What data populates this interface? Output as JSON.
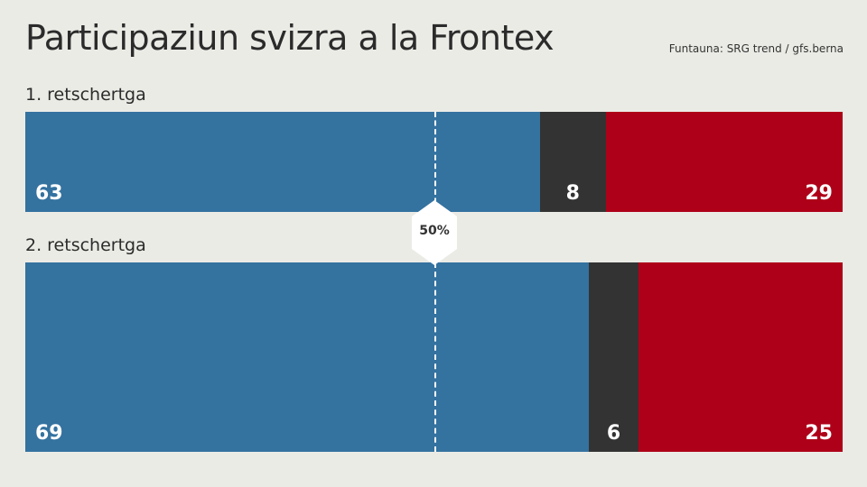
{
  "title": "Participaziun svizra a la Frontex",
  "source": "Funtauna: SRG trend / gfs.berna",
  "reference_label": "50%",
  "colors": {
    "yes": "#3472a0",
    "undecided": "#333333",
    "no": "#ae0018",
    "background": "#ebebe6"
  },
  "chart_data": {
    "type": "bar",
    "orientation": "horizontal-stacked",
    "categories": [
      "1. retschertga",
      "2. retschertga"
    ],
    "series": [
      {
        "values": [
          63,
          69
        ],
        "color": "#3472a0"
      },
      {
        "values": [
          8,
          6
        ],
        "color": "#333333"
      },
      {
        "values": [
          29,
          25
        ],
        "color": "#ae0018"
      }
    ],
    "xlim": [
      0,
      100
    ],
    "reference_line": 50,
    "grid": false
  }
}
